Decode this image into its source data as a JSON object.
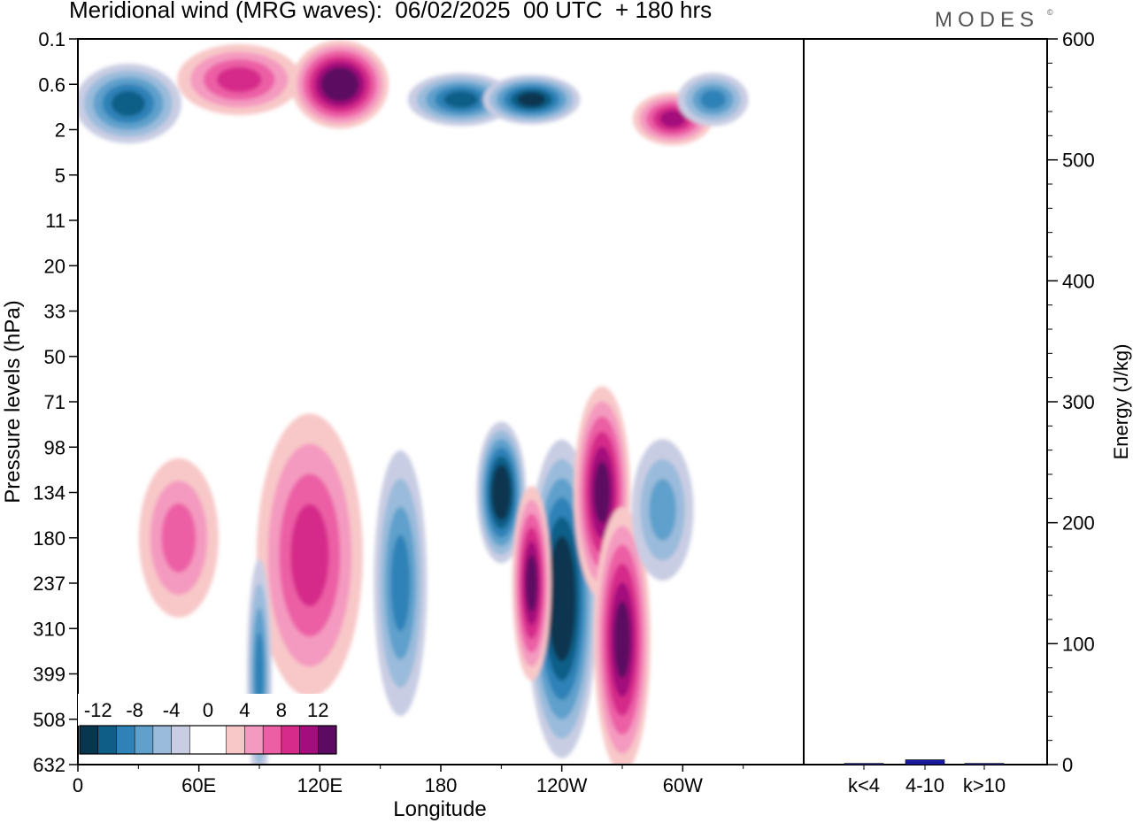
{
  "title": "Meridional wind (MRG waves):  06/02/2025  00 UTC  + 180 hrs",
  "brand": "MODES",
  "brand_mark": "©",
  "chart_data": [
    {
      "type": "heatmap",
      "xlabel": "Longitude",
      "ylabel": "Pressure levels (hPa)",
      "x_ticks": [
        "0",
        "60E",
        "120E",
        "180",
        "120W",
        "60W"
      ],
      "x_tick_values": [
        0,
        60,
        120,
        180,
        240,
        300
      ],
      "xlim": [
        0,
        360
      ],
      "y_ticks": [
        "0.1",
        "0.6",
        "2",
        "5",
        "11",
        "20",
        "33",
        "50",
        "71",
        "98",
        "134",
        "180",
        "237",
        "310",
        "399",
        "508",
        "632"
      ],
      "colorbar": {
        "labels": [
          "-12",
          "-8",
          "-4",
          "0",
          "4",
          "8",
          "12"
        ],
        "label_positions": [
          -12,
          -8,
          -4,
          0,
          4,
          8,
          12
        ],
        "levels": [
          -14,
          -12,
          -10,
          -8,
          -6,
          -4,
          -2,
          2,
          4,
          6,
          8,
          10,
          12,
          14
        ],
        "colors": [
          "#08364f",
          "#0f5e88",
          "#2f82b7",
          "#5fa0cc",
          "#9abbdb",
          "#c9cde3",
          "#ffffff",
          "#f8c8c8",
          "#f49ac0",
          "#ec5fa5",
          "#d62b8a",
          "#a40d7c",
          "#5c0a62"
        ]
      },
      "features": [
        {
          "lon": 80,
          "level": 0.5,
          "value": 9
        },
        {
          "lon": 130,
          "level": 0.6,
          "value": 14
        },
        {
          "lon": 25,
          "level": 1.0,
          "value": -10
        },
        {
          "lon": 190,
          "level": 0.9,
          "value": -11
        },
        {
          "lon": 225,
          "level": 0.9,
          "value": -12
        },
        {
          "lon": 295,
          "level": 1.5,
          "value": 10
        },
        {
          "lon": 315,
          "level": 0.9,
          "value": -9
        },
        {
          "lon": 210,
          "level": 134,
          "value": -14
        },
        {
          "lon": 240,
          "level": 260,
          "value": -14
        },
        {
          "lon": 260,
          "level": 134,
          "value": 12
        },
        {
          "lon": 270,
          "level": 330,
          "value": 12
        },
        {
          "lon": 225,
          "level": 237,
          "value": 12
        },
        {
          "lon": 160,
          "level": 237,
          "value": -8
        },
        {
          "lon": 115,
          "level": 200,
          "value": 8
        },
        {
          "lon": 50,
          "level": 180,
          "value": 6
        },
        {
          "lon": 90,
          "level": 399,
          "value": -9
        },
        {
          "lon": 290,
          "level": 150,
          "value": -7
        }
      ]
    },
    {
      "type": "bar",
      "categories": [
        "k<4",
        "4-10",
        "k>10"
      ],
      "values": [
        1,
        4,
        1
      ],
      "bar_color": "#1a1aa0",
      "ylabel": "Energy (J/kg)",
      "ylim": [
        0,
        600
      ],
      "y_ticks": [
        "0",
        "100",
        "200",
        "300",
        "400",
        "500",
        "600"
      ],
      "y_tick_values": [
        0,
        100,
        200,
        300,
        400,
        500,
        600
      ]
    }
  ]
}
